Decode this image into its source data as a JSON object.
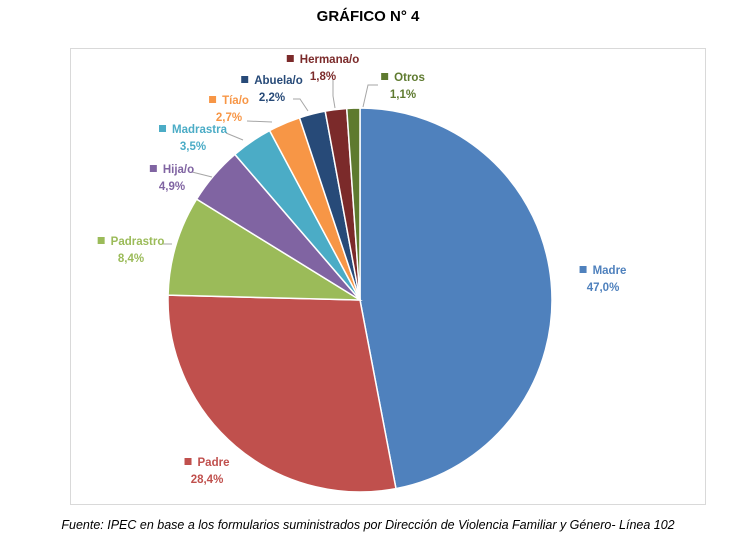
{
  "title": "GRÁFICO N° 4",
  "source": "Fuente: IPEC en base a los formularios suministrados por Dirección de Violencia Familiar y Género- Línea 102",
  "chart_data": {
    "type": "pie",
    "start": "top",
    "direction": "clockwise",
    "slices": [
      {
        "label": "Madre",
        "value": 47.0,
        "value_label": "47,0%",
        "color": "#4f81bd"
      },
      {
        "label": "Padre",
        "value": 28.4,
        "value_label": "28,4%",
        "color": "#c0504d"
      },
      {
        "label": "Padrastro",
        "value": 8.4,
        "value_label": "8,4%",
        "color": "#9bbb59"
      },
      {
        "label": "Hija/o",
        "value": 4.9,
        "value_label": "4,9%",
        "color": "#8064a2"
      },
      {
        "label": "Madrastra",
        "value": 3.5,
        "value_label": "3,5%",
        "color": "#4bacc6"
      },
      {
        "label": "Tía/o",
        "value": 2.7,
        "value_label": "2,7%",
        "color": "#f79646"
      },
      {
        "label": "Abuela/o",
        "value": 2.2,
        "value_label": "2,2%",
        "color": "#274a78"
      },
      {
        "label": "Hermana/o",
        "value": 1.8,
        "value_label": "1,8%",
        "color": "#7b2a2a"
      },
      {
        "label": "Otros",
        "value": 1.1,
        "value_label": "1,1%",
        "color": "#5e7a2f"
      }
    ]
  }
}
